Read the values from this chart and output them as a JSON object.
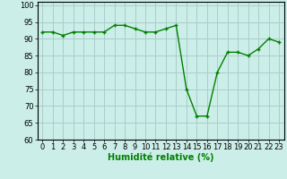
{
  "x": [
    0,
    1,
    2,
    3,
    4,
    5,
    6,
    7,
    8,
    9,
    10,
    11,
    12,
    13,
    14,
    15,
    16,
    17,
    18,
    19,
    20,
    21,
    22,
    23
  ],
  "y": [
    92,
    92,
    91,
    92,
    92,
    92,
    92,
    94,
    94,
    93,
    92,
    92,
    93,
    94,
    75,
    67,
    67,
    80,
    86,
    86,
    85,
    87,
    90,
    89
  ],
  "line_color": "#008000",
  "marker": "+",
  "marker_color": "#008000",
  "bg_color": "#cceee8",
  "grid_color": "#aacccc",
  "xlabel": "Humidité relative (%)",
  "xlabel_color": "#008000",
  "ylim": [
    60,
    101
  ],
  "xlim": [
    -0.5,
    23.5
  ],
  "yticks": [
    60,
    65,
    70,
    75,
    80,
    85,
    90,
    95,
    100
  ],
  "xtick_labels": [
    "0",
    "1",
    "2",
    "3",
    "4",
    "5",
    "6",
    "7",
    "8",
    "9",
    "10",
    "11",
    "12",
    "13",
    "14",
    "15",
    "16",
    "17",
    "18",
    "19",
    "20",
    "21",
    "22",
    "23"
  ],
  "tick_fontsize": 6,
  "xlabel_fontsize": 7,
  "line_width": 1.0,
  "marker_size": 3.5
}
